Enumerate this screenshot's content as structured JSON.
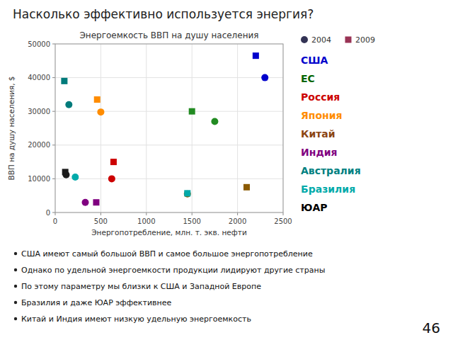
{
  "title": "Насколько эффективно используется энергия?",
  "chart_data": {
    "type": "scatter",
    "title": "Энергоемкость ВВП на душу населения",
    "x_label": "Энергопотребление, млн. т. экв. нефти",
    "y_label": "ВВП на душу населения, $",
    "xlim": [
      0,
      2500
    ],
    "ylim": [
      0,
      50000
    ],
    "xticks": [
      0,
      500,
      1000,
      1500,
      2000,
      2500
    ],
    "yticks": [
      0,
      10000,
      20000,
      30000,
      40000,
      50000
    ],
    "grid": true,
    "legend": "upper right",
    "series": [
      {
        "name": "2004",
        "color": "#333355",
        "marker": "circle",
        "x": [
          2300,
          150,
          500,
          620,
          1750,
          330,
          120,
          220,
          1450
        ],
        "values": [
          40000,
          32000,
          29800,
          10000,
          27000,
          3000,
          11200,
          10500,
          5500
        ],
        "colors": [
          "#0000CC",
          "#007B7B",
          "#FF8C00",
          "#CC0000",
          "#228B22",
          "#800080",
          "#1A1A1A",
          "#00AAAA",
          "#8B5A00"
        ]
      },
      {
        "name": "2009",
        "color": "#993355",
        "marker": "square",
        "x": [
          2200,
          100,
          460,
          640,
          1500,
          450,
          110,
          1450,
          2100
        ],
        "values": [
          46500,
          39000,
          33500,
          15000,
          30000,
          3000,
          12000,
          5700,
          7500
        ],
        "colors": [
          "#0000CC",
          "#007B7B",
          "#FF8C00",
          "#CC0000",
          "#228B22",
          "#800080",
          "#1A1A1A",
          "#00AAAA",
          "#8B5A00"
        ]
      }
    ],
    "annotations": [
      {
        "text": "США",
        "color": "#0000CC"
      },
      {
        "text": "ЕС",
        "color": "#006400"
      },
      {
        "text": "Россия",
        "color": "#CC0000"
      },
      {
        "text": "Япония",
        "color": "#FF8C00"
      },
      {
        "text": "Китай",
        "color": "#8B4513"
      },
      {
        "text": "Индия",
        "color": "#800080"
      },
      {
        "text": "Австралия",
        "color": "#008080"
      },
      {
        "text": "Бразилия",
        "color": "#00AAAA"
      },
      {
        "text": "ЮАР",
        "color": "#000000"
      }
    ]
  },
  "notes": [
    "США имеют самый большой ВВП и самое большое энергопотребление",
    "Однако по удельной энергоемкости продукции лидируют другие страны",
    "По этому параметру мы близки к США и Западной Европе",
    "Бразилия и даже ЮАР эффективнее",
    "Китай и Индия имеют низкую удельную энергоемкость"
  ],
  "page_number": 46
}
